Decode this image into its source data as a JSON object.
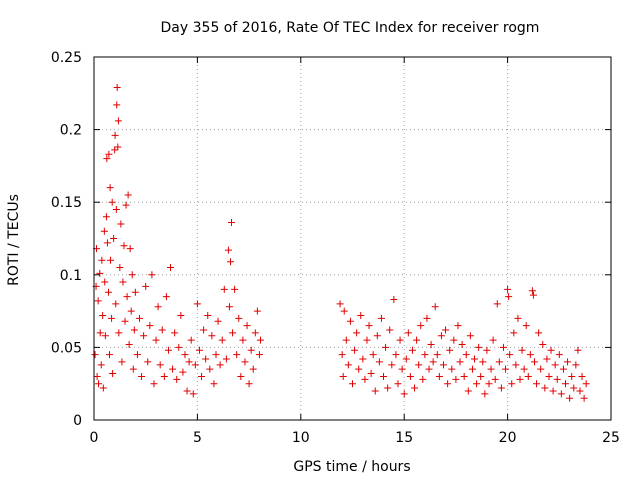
{
  "chart_data": {
    "type": "scatter",
    "title": "Day 355 of 2016, Rate Of TEC Index for receiver rogm",
    "xlabel": "GPS time / hours",
    "ylabel": "ROTI / TECUs",
    "xlim": [
      0,
      25
    ],
    "ylim": [
      0,
      0.25
    ],
    "x_ticks": [
      0,
      5,
      10,
      15,
      20,
      25
    ],
    "y_ticks": [
      0,
      0.05,
      0.1,
      0.15,
      0.2,
      0.25
    ],
    "x_tick_labels": [
      "0",
      "5",
      "10",
      "15",
      "20",
      "25"
    ],
    "y_tick_labels": [
      "0",
      "0.05",
      "0.1",
      "0.15",
      "0.2",
      "0.25"
    ],
    "grid": true,
    "marker": "+",
    "color": "#e00000",
    "series": [
      {
        "name": "ROTI",
        "points": [
          [
            0.05,
            0.045
          ],
          [
            0.1,
            0.092
          ],
          [
            0.12,
            0.118
          ],
          [
            0.15,
            0.03
          ],
          [
            0.2,
            0.082
          ],
          [
            0.22,
            0.025
          ],
          [
            0.28,
            0.101
          ],
          [
            0.3,
            0.06
          ],
          [
            0.35,
            0.038
          ],
          [
            0.38,
            0.11
          ],
          [
            0.42,
            0.072
          ],
          [
            0.45,
            0.022
          ],
          [
            0.5,
            0.13
          ],
          [
            0.52,
            0.095
          ],
          [
            0.55,
            0.058
          ],
          [
            0.6,
            0.14
          ],
          [
            0.62,
            0.18
          ],
          [
            0.65,
            0.122
          ],
          [
            0.7,
            0.088
          ],
          [
            0.72,
            0.183
          ],
          [
            0.75,
            0.045
          ],
          [
            0.78,
            0.16
          ],
          [
            0.8,
            0.11
          ],
          [
            0.85,
            0.07
          ],
          [
            0.88,
            0.15
          ],
          [
            0.9,
            0.032
          ],
          [
            0.95,
            0.125
          ],
          [
            1.0,
            0.186
          ],
          [
            1.02,
            0.196
          ],
          [
            1.05,
            0.08
          ],
          [
            1.08,
            0.145
          ],
          [
            1.1,
            0.217
          ],
          [
            1.12,
            0.229
          ],
          [
            1.15,
            0.188
          ],
          [
            1.18,
            0.206
          ],
          [
            1.2,
            0.06
          ],
          [
            1.25,
            0.105
          ],
          [
            1.3,
            0.135
          ],
          [
            1.35,
            0.04
          ],
          [
            1.4,
            0.095
          ],
          [
            1.45,
            0.12
          ],
          [
            1.5,
            0.068
          ],
          [
            1.55,
            0.148
          ],
          [
            1.6,
            0.085
          ],
          [
            1.65,
            0.155
          ],
          [
            1.7,
            0.052
          ],
          [
            1.75,
            0.118
          ],
          [
            1.8,
            0.075
          ],
          [
            1.85,
            0.1
          ],
          [
            1.9,
            0.035
          ],
          [
            1.95,
            0.062
          ],
          [
            2.0,
            0.088
          ],
          [
            2.1,
            0.045
          ],
          [
            2.2,
            0.07
          ],
          [
            2.3,
            0.03
          ],
          [
            2.4,
            0.058
          ],
          [
            2.5,
            0.092
          ],
          [
            2.6,
            0.04
          ],
          [
            2.7,
            0.065
          ],
          [
            2.8,
            0.1
          ],
          [
            2.9,
            0.025
          ],
          [
            3.0,
            0.055
          ],
          [
            3.1,
            0.078
          ],
          [
            3.2,
            0.038
          ],
          [
            3.3,
            0.062
          ],
          [
            3.4,
            0.03
          ],
          [
            3.5,
            0.085
          ],
          [
            3.6,
            0.048
          ],
          [
            3.7,
            0.105
          ],
          [
            3.8,
            0.035
          ],
          [
            3.9,
            0.06
          ],
          [
            4.0,
            0.028
          ],
          [
            4.1,
            0.05
          ],
          [
            4.2,
            0.072
          ],
          [
            4.3,
            0.033
          ],
          [
            4.4,
            0.045
          ],
          [
            4.5,
            0.02
          ],
          [
            4.6,
            0.04
          ],
          [
            4.7,
            0.055
          ],
          [
            4.8,
            0.018
          ],
          [
            4.9,
            0.038
          ],
          [
            5.0,
            0.08
          ],
          [
            5.1,
            0.048
          ],
          [
            5.2,
            0.03
          ],
          [
            5.3,
            0.062
          ],
          [
            5.4,
            0.042
          ],
          [
            5.5,
            0.072
          ],
          [
            5.6,
            0.035
          ],
          [
            5.7,
            0.058
          ],
          [
            5.8,
            0.025
          ],
          [
            5.9,
            0.045
          ],
          [
            6.0,
            0.068
          ],
          [
            6.1,
            0.038
          ],
          [
            6.2,
            0.055
          ],
          [
            6.3,
            0.09
          ],
          [
            6.4,
            0.042
          ],
          [
            6.5,
            0.117
          ],
          [
            6.55,
            0.078
          ],
          [
            6.6,
            0.109
          ],
          [
            6.65,
            0.136
          ],
          [
            6.7,
            0.06
          ],
          [
            6.8,
            0.09
          ],
          [
            6.9,
            0.045
          ],
          [
            7.0,
            0.07
          ],
          [
            7.1,
            0.03
          ],
          [
            7.2,
            0.055
          ],
          [
            7.3,
            0.04
          ],
          [
            7.4,
            0.065
          ],
          [
            7.5,
            0.025
          ],
          [
            7.6,
            0.048
          ],
          [
            7.7,
            0.035
          ],
          [
            7.8,
            0.06
          ],
          [
            7.9,
            0.075
          ],
          [
            8.0,
            0.045
          ],
          [
            8.05,
            0.055
          ],
          [
            11.9,
            0.08
          ],
          [
            12.0,
            0.045
          ],
          [
            12.05,
            0.03
          ],
          [
            12.1,
            0.075
          ],
          [
            12.2,
            0.055
          ],
          [
            12.3,
            0.038
          ],
          [
            12.4,
            0.068
          ],
          [
            12.5,
            0.025
          ],
          [
            12.6,
            0.048
          ],
          [
            12.7,
            0.06
          ],
          [
            12.8,
            0.035
          ],
          [
            12.9,
            0.072
          ],
          [
            13.0,
            0.042
          ],
          [
            13.1,
            0.028
          ],
          [
            13.2,
            0.055
          ],
          [
            13.3,
            0.065
          ],
          [
            13.4,
            0.032
          ],
          [
            13.5,
            0.045
          ],
          [
            13.6,
            0.02
          ],
          [
            13.7,
            0.058
          ],
          [
            13.8,
            0.04
          ],
          [
            13.9,
            0.07
          ],
          [
            14.0,
            0.03
          ],
          [
            14.1,
            0.05
          ],
          [
            14.2,
            0.022
          ],
          [
            14.3,
            0.062
          ],
          [
            14.4,
            0.038
          ],
          [
            14.5,
            0.083
          ],
          [
            14.6,
            0.045
          ],
          [
            14.7,
            0.025
          ],
          [
            14.8,
            0.055
          ],
          [
            14.9,
            0.035
          ],
          [
            15.0,
            0.018
          ],
          [
            15.1,
            0.042
          ],
          [
            15.2,
            0.06
          ],
          [
            15.3,
            0.03
          ],
          [
            15.4,
            0.048
          ],
          [
            15.5,
            0.022
          ],
          [
            15.6,
            0.055
          ],
          [
            15.7,
            0.038
          ],
          [
            15.8,
            0.065
          ],
          [
            15.9,
            0.028
          ],
          [
            16.0,
            0.045
          ],
          [
            16.1,
            0.07
          ],
          [
            16.2,
            0.035
          ],
          [
            16.3,
            0.052
          ],
          [
            16.4,
            0.04
          ],
          [
            16.5,
            0.078
          ],
          [
            16.6,
            0.045
          ],
          [
            16.7,
            0.03
          ],
          [
            16.8,
            0.058
          ],
          [
            16.9,
            0.038
          ],
          [
            17.0,
            0.062
          ],
          [
            17.1,
            0.025
          ],
          [
            17.2,
            0.048
          ],
          [
            17.3,
            0.035
          ],
          [
            17.4,
            0.055
          ],
          [
            17.5,
            0.028
          ],
          [
            17.6,
            0.065
          ],
          [
            17.7,
            0.04
          ],
          [
            17.8,
            0.052
          ],
          [
            17.9,
            0.03
          ],
          [
            18.0,
            0.045
          ],
          [
            18.1,
            0.02
          ],
          [
            18.2,
            0.058
          ],
          [
            18.3,
            0.035
          ],
          [
            18.4,
            0.042
          ],
          [
            18.5,
            0.025
          ],
          [
            18.6,
            0.05
          ],
          [
            18.7,
            0.03
          ],
          [
            18.8,
            0.04
          ],
          [
            18.9,
            0.018
          ],
          [
            19.0,
            0.048
          ],
          [
            19.1,
            0.025
          ],
          [
            19.2,
            0.035
          ],
          [
            19.3,
            0.055
          ],
          [
            19.4,
            0.028
          ],
          [
            19.5,
            0.08
          ],
          [
            19.6,
            0.04
          ],
          [
            19.7,
            0.022
          ],
          [
            19.8,
            0.05
          ],
          [
            19.9,
            0.035
          ],
          [
            20.0,
            0.09
          ],
          [
            20.05,
            0.085
          ],
          [
            20.1,
            0.045
          ],
          [
            20.2,
            0.025
          ],
          [
            20.3,
            0.06
          ],
          [
            20.4,
            0.038
          ],
          [
            20.5,
            0.07
          ],
          [
            20.6,
            0.028
          ],
          [
            20.7,
            0.048
          ],
          [
            20.8,
            0.035
          ],
          [
            20.9,
            0.065
          ],
          [
            21.0,
            0.03
          ],
          [
            21.1,
            0.045
          ],
          [
            21.2,
            0.089
          ],
          [
            21.25,
            0.086
          ],
          [
            21.3,
            0.04
          ],
          [
            21.4,
            0.025
          ],
          [
            21.5,
            0.06
          ],
          [
            21.6,
            0.035
          ],
          [
            21.7,
            0.052
          ],
          [
            21.8,
            0.022
          ],
          [
            21.9,
            0.042
          ],
          [
            22.0,
            0.03
          ],
          [
            22.1,
            0.048
          ],
          [
            22.2,
            0.02
          ],
          [
            22.3,
            0.038
          ],
          [
            22.4,
            0.028
          ],
          [
            22.5,
            0.045
          ],
          [
            22.6,
            0.018
          ],
          [
            22.7,
            0.035
          ],
          [
            22.8,
            0.025
          ],
          [
            22.9,
            0.04
          ],
          [
            23.0,
            0.015
          ],
          [
            23.1,
            0.03
          ],
          [
            23.2,
            0.022
          ],
          [
            23.3,
            0.038
          ],
          [
            23.4,
            0.048
          ],
          [
            23.5,
            0.02
          ],
          [
            23.6,
            0.03
          ],
          [
            23.7,
            0.015
          ],
          [
            23.8,
            0.025
          ]
        ]
      }
    ]
  }
}
